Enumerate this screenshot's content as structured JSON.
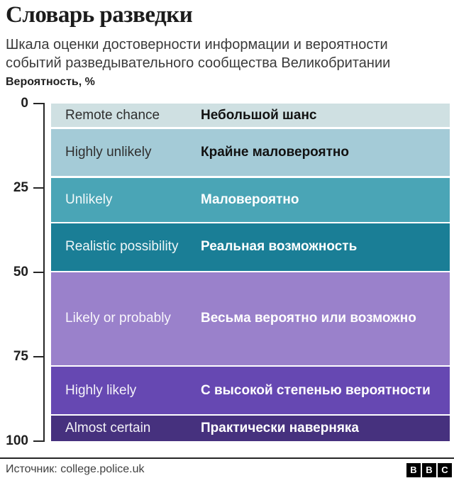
{
  "header": {
    "title": "Словарь разведки",
    "subtitle_lines": [
      "Шкала оценки достоверности информации и вероятности",
      "событий разведывательного сообщества Великобритании"
    ],
    "axis_label": "Вероятность, %"
  },
  "chart_data": {
    "type": "bar",
    "title": "Словарь разведки",
    "subtitle": "Шкала оценки достоверности информации и вероятности событий разведывательного сообщества Великобритании",
    "ylabel": "Вероятность, %",
    "ylim": [
      0,
      100
    ],
    "yticks": [
      0,
      25,
      50,
      75,
      100
    ],
    "grid": false,
    "axis_color": "#262626",
    "bands": [
      {
        "label_en": "Remote chance",
        "label_ru": "Небольшой шанс",
        "range_pct": [
          0,
          7
        ],
        "color": "#cfe0e2",
        "text_theme": "dark"
      },
      {
        "label_en": "Highly unlikely",
        "label_ru": "Крайне маловероятно",
        "range_pct": [
          7.5,
          21.5
        ],
        "color": "#a4cbd7",
        "text_theme": "dark"
      },
      {
        "label_en": "Unlikely",
        "label_ru": "Маловероятно",
        "range_pct": [
          22,
          35
        ],
        "color": "#4aa5b6",
        "text_theme": "light"
      },
      {
        "label_en": "Realistic possibility",
        "label_ru": "Реальная возможность",
        "range_pct": [
          35.5,
          49.5
        ],
        "color": "#1a7e96",
        "text_theme": "light"
      },
      {
        "label_en": "Likely or probably",
        "label_ru": "Весьма вероятно или возможно",
        "range_pct": [
          50,
          77.5
        ],
        "color": "#9a81cb",
        "text_theme": "light"
      },
      {
        "label_en": "Highly likely",
        "label_ru": "С высокой степенью вероятности",
        "range_pct": [
          78,
          92
        ],
        "color": "#6648b2",
        "text_theme": "light"
      },
      {
        "label_en": "Almost certain",
        "label_ru": "Практически наверняка",
        "range_pct": [
          92.5,
          100
        ],
        "color": "#46317e",
        "text_theme": "light"
      }
    ]
  },
  "footer": {
    "source": "Источник: college.police.uk",
    "logo_letters": [
      "B",
      "B",
      "C"
    ]
  }
}
